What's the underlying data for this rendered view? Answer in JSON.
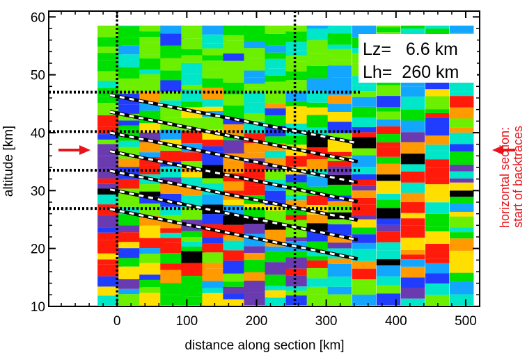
{
  "chart_data": {
    "type": "heatmap",
    "title": "",
    "xlabel": "distance along section [km]",
    "ylabel": "altitude [km]",
    "xlim": [
      -98,
      520
    ],
    "ylim": [
      10,
      61
    ],
    "x_ticks": [
      0,
      100,
      200,
      300,
      400,
      500
    ],
    "y_ticks": [
      10,
      20,
      30,
      40,
      50,
      60
    ],
    "grid": false,
    "columns_x_km": [
      -10,
      20,
      50,
      80,
      110,
      140,
      170,
      200,
      230,
      260,
      290,
      320,
      355,
      390,
      425,
      460,
      495
    ],
    "column_top_km": 58.5,
    "column_bottom_km": 10.2,
    "annotation": {
      "lz": "Lz=   6.6 km",
      "lh": "Lh=  260 km"
    },
    "vertical_markers_km": [
      0,
      255
    ],
    "horizontal_markers_km": [
      47,
      40.2,
      33.5,
      26.9
    ],
    "phase_lines": [
      {
        "x0": -10,
        "y0": 46.5,
        "x1": 345,
        "y1": 38.2
      },
      {
        "x0": -10,
        "y0": 43.6,
        "x1": 345,
        "y1": 35.0
      },
      {
        "x0": -10,
        "y0": 40.0,
        "x1": 345,
        "y1": 31.4
      },
      {
        "x0": -10,
        "y0": 36.8,
        "x1": 345,
        "y1": 28.1
      },
      {
        "x0": -10,
        "y0": 33.4,
        "x1": 345,
        "y1": 24.9
      },
      {
        "x0": -10,
        "y0": 30.2,
        "x1": 345,
        "y1": 21.5
      },
      {
        "x0": -10,
        "y0": 26.8,
        "x1": 345,
        "y1": 18.2
      }
    ],
    "left_arrow_altitude_km": 37.0,
    "right_arrow_altitude_km": 37.0,
    "right_label_line1": "horizontal section:",
    "right_label_line2": "start of backtraces",
    "colors": {
      "blue": "#1f3cff",
      "lightblue": "#12a6ff",
      "cyan": "#00e6c8",
      "green": "#00e000",
      "lime": "#6cf000",
      "yellow": "#ffde00",
      "orange": "#ff9a00",
      "red": "#ff1a0a",
      "purple": "#6a3ab0",
      "black": "#000000",
      "arrow_red": "#e8141b"
    }
  }
}
